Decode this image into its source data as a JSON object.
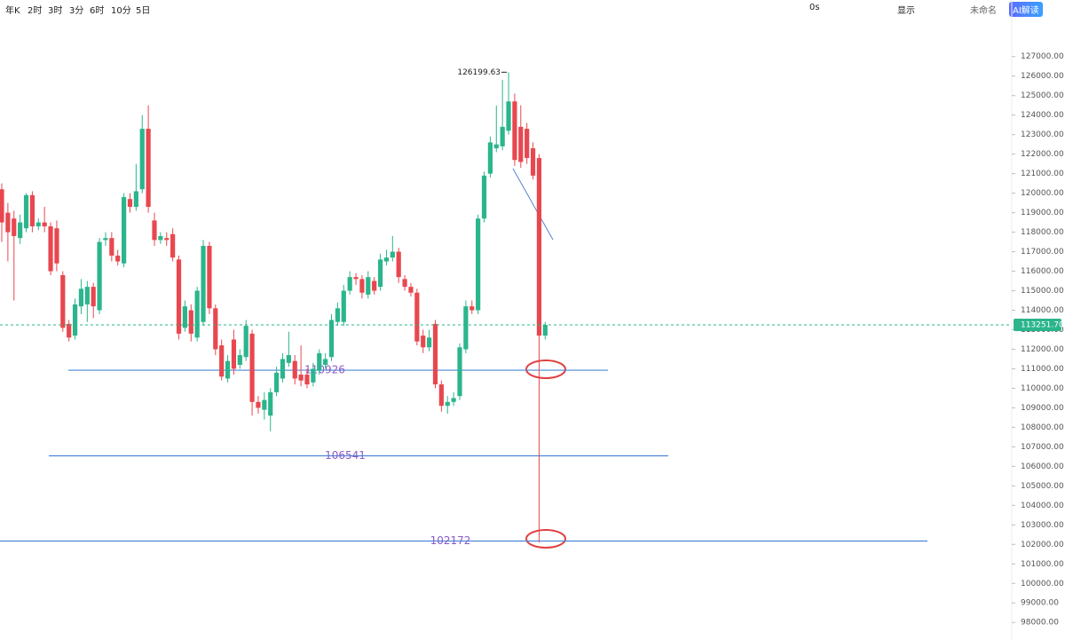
{
  "toolbar": {
    "periods": [
      "年K",
      "2时",
      "3时",
      "3分",
      "6时",
      "10分",
      "5日"
    ],
    "timer": "0s",
    "display": "显示",
    "layout_name": "未命名",
    "ai": "AI解读"
  },
  "chart_data": {
    "type": "candlestick",
    "up_color": "#2bb58c",
    "down_color": "#e8474f",
    "open": [
      120200,
      119000,
      118700,
      117700,
      118200,
      119900,
      118300,
      118500,
      118300,
      118200,
      115800,
      113300,
      112700,
      114200,
      114300,
      115200,
      114000,
      117600,
      117700,
      116800,
      116400,
      119700,
      119300,
      120200,
      123300,
      118600,
      117600,
      117700,
      117900,
      116600,
      113100,
      114000,
      112600,
      113400,
      117300,
      114100,
      112200,
      110500,
      112500,
      111200,
      111600,
      112800,
      109300,
      108900,
      108600,
      109800,
      110500,
      111300,
      111400,
      110700,
      110700,
      110300,
      110900,
      111200,
      111600,
      113400,
      113400,
      115000,
      115700,
      115600,
      114800,
      115500,
      115200,
      116500,
      116700,
      117000,
      115600,
      115200,
      114900,
      112700,
      112100,
      113300,
      110200,
      109100,
      109300,
      109600,
      112000,
      114200,
      114000,
      118700,
      121000,
      122300,
      122400,
      123200,
      124700,
      123400,
      123300,
      122300,
      121800,
      112700
    ],
    "high": [
      120500,
      119500,
      119100,
      118900,
      120000,
      120100,
      118700,
      119300,
      118500,
      118600,
      116000,
      113500,
      114600,
      115600,
      115500,
      115400,
      117700,
      118000,
      118000,
      117100,
      120000,
      120000,
      121500,
      124000,
      124500,
      119000,
      118000,
      118000,
      118200,
      116800,
      114500,
      114300,
      115200,
      117600,
      117500,
      114300,
      112500,
      111700,
      113000,
      112000,
      113500,
      113000,
      109600,
      109800,
      110000,
      111100,
      111800,
      112900,
      111700,
      112200,
      111000,
      111300,
      112000,
      111800,
      113800,
      114400,
      115300,
      116000,
      115900,
      115800,
      116000,
      115700,
      116900,
      117100,
      117800,
      117200,
      115800,
      115400,
      115100,
      113000,
      113000,
      113500,
      110400,
      109600,
      109800,
      112300,
      114500,
      114500,
      118900,
      121100,
      122900,
      124500,
      125800,
      126199.63,
      125100,
      124500,
      123600,
      122600,
      122000,
      113400
    ],
    "low": [
      117500,
      116500,
      114500,
      117400,
      118000,
      118000,
      118100,
      118000,
      115800,
      116000,
      112900,
      112400,
      112500,
      113800,
      113400,
      113600,
      113800,
      117300,
      116500,
      116300,
      116200,
      119000,
      119100,
      120000,
      119000,
      117300,
      117400,
      117300,
      116500,
      112500,
      112900,
      112400,
      112400,
      113200,
      113800,
      111700,
      110400,
      110300,
      110700,
      111000,
      111400,
      108600,
      108700,
      108400,
      107800,
      109600,
      110300,
      111100,
      110200,
      110100,
      110000,
      110100,
      110700,
      111000,
      111400,
      113200,
      113200,
      114800,
      115300,
      114600,
      114600,
      114800,
      115000,
      116300,
      116500,
      115400,
      115000,
      114700,
      112200,
      111800,
      111900,
      110000,
      108800,
      108700,
      109100,
      109400,
      111800,
      113800,
      113800,
      118500,
      120800,
      122100,
      122200,
      123000,
      121400,
      121300,
      121500,
      120700,
      102100,
      112500
    ],
    "close": [
      118500,
      118000,
      117800,
      118500,
      119900,
      118300,
      118500,
      118300,
      116000,
      116400,
      113100,
      112600,
      114300,
      115100,
      115200,
      114200,
      117500,
      117700,
      116800,
      116500,
      119800,
      119300,
      120100,
      123300,
      119300,
      117600,
      117800,
      117600,
      116700,
      112800,
      114200,
      112800,
      115000,
      117300,
      114100,
      112000,
      110600,
      111400,
      111000,
      111700,
      113200,
      109300,
      109000,
      109400,
      109800,
      110800,
      111500,
      111700,
      110500,
      110400,
      110200,
      111000,
      111800,
      111500,
      113500,
      114100,
      115000,
      115700,
      115600,
      114900,
      115700,
      115000,
      116600,
      116700,
      117000,
      115700,
      115200,
      114900,
      112400,
      112100,
      112600,
      110200,
      109100,
      109300,
      109500,
      112100,
      114200,
      114000,
      118700,
      120900,
      122600,
      122500,
      123400,
      124700,
      121700,
      121600,
      121800,
      120900,
      112700,
      113251.7
    ],
    "ylim": [
      97100,
      129900
    ],
    "yticks": [
      {
        "value": 98000,
        "label": "98000.00"
      },
      {
        "value": 99000,
        "label": "99000.00"
      },
      {
        "value": 100000,
        "label": "100000.00"
      },
      {
        "value": 101000,
        "label": "101000.00"
      },
      {
        "value": 102000,
        "label": "102000.00"
      },
      {
        "value": 103000,
        "label": "103000.00"
      },
      {
        "value": 104000,
        "label": "104000.00"
      },
      {
        "value": 105000,
        "label": "105000.00"
      },
      {
        "value": 106000,
        "label": "106000.00"
      },
      {
        "value": 107000,
        "label": "107000.00"
      },
      {
        "value": 108000,
        "label": "108000.00"
      },
      {
        "value": 109000,
        "label": "109000.00"
      },
      {
        "value": 110000,
        "label": "110000.00"
      },
      {
        "value": 111000,
        "label": "111000.00"
      },
      {
        "value": 112000,
        "label": "112000.00"
      },
      {
        "value": 113000,
        "label": "113000.00"
      },
      {
        "value": 114000,
        "label": "114000.00"
      },
      {
        "value": 115000,
        "label": "115000.00"
      },
      {
        "value": 116000,
        "label": "116000.00"
      },
      {
        "value": 117000,
        "label": "117000.00"
      },
      {
        "value": 118000,
        "label": "118000.00"
      },
      {
        "value": 119000,
        "label": "119000.00"
      },
      {
        "value": 120000,
        "label": "120000.00"
      },
      {
        "value": 121000,
        "label": "121000.00"
      },
      {
        "value": 122000,
        "label": "122000.00"
      },
      {
        "value": 123000,
        "label": "123000.00"
      },
      {
        "value": 124000,
        "label": "124000.00"
      },
      {
        "value": 125000,
        "label": "125000.00"
      },
      {
        "value": 126000,
        "label": "126000.00"
      },
      {
        "value": 127000,
        "label": "127000.00"
      }
    ],
    "levels": [
      110926,
      106541,
      102172
    ],
    "max_label": "126199.63",
    "last_label": "113251.70"
  }
}
